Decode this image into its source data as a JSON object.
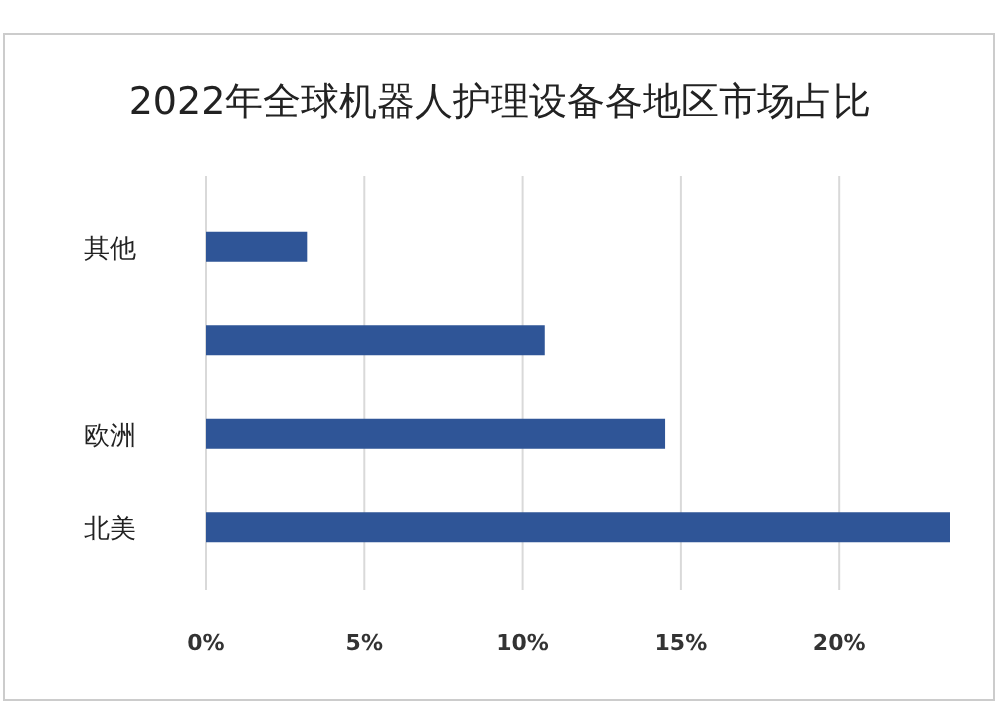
{
  "chart_data": {
    "type": "bar",
    "orientation": "horizontal",
    "title": "2022年全球机器人护理设备各地区市场占比",
    "categories": [
      "其他",
      null,
      "欧洲",
      "北美"
    ],
    "values": [
      3.2,
      10.7,
      14.5,
      23.5
    ],
    "color": "#2f5597",
    "xlim": [
      0,
      23.5
    ],
    "xticks": [
      {
        "value": 0,
        "label": "0%"
      },
      {
        "value": 5,
        "label": "5%"
      },
      {
        "value": 10,
        "label": "10%"
      },
      {
        "value": 15,
        "label": "15%"
      },
      {
        "value": 20,
        "label": "20%"
      }
    ],
    "grid": "x"
  }
}
